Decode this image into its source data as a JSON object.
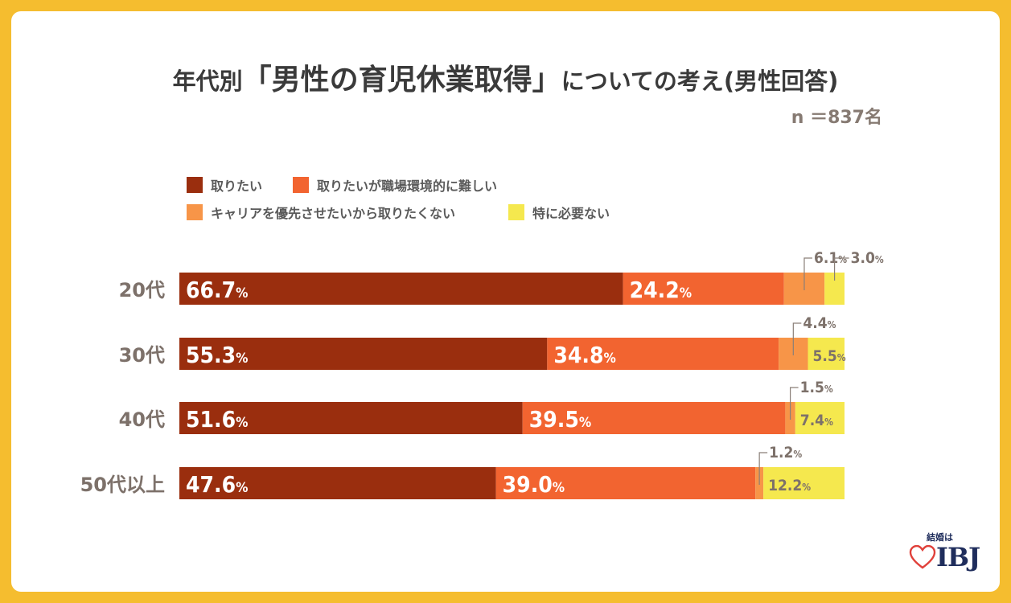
{
  "title": {
    "prefix": "年代別",
    "main": "「男性の育児休業取得」",
    "suffix": "についての考え(男性回答)"
  },
  "sample_size": "n ＝837名",
  "logo": {
    "top_text": "結婚は",
    "brand": "IBJ"
  },
  "chart_data": {
    "type": "bar",
    "orientation": "horizontal",
    "stacked": true,
    "percent_stacked": true,
    "categories": [
      "20代",
      "30代",
      "40代",
      "50代以上"
    ],
    "series": [
      {
        "name": "取りたい",
        "color": "#9a2e0e",
        "values": [
          66.7,
          55.3,
          51.6,
          47.6
        ]
      },
      {
        "name": "取りたいが職場環境的に難しい",
        "color": "#f26430",
        "values": [
          24.2,
          34.8,
          39.5,
          39.0
        ]
      },
      {
        "name": "キャリアを優先させたいから取りたくない",
        "color": "#f79548",
        "values": [
          6.1,
          4.4,
          1.5,
          1.2
        ]
      },
      {
        "name": "特に必要ない",
        "color": "#f5e84e",
        "values": [
          3.0,
          5.5,
          7.4,
          12.2
        ]
      }
    ],
    "value_labels": [
      [
        "66.7",
        "24.2",
        "6.1",
        "3.0"
      ],
      [
        "55.3",
        "34.8",
        "4.4",
        "5.5"
      ],
      [
        "51.6",
        "39.5",
        "1.5",
        "7.4"
      ],
      [
        "47.6",
        "39.0",
        "1.2",
        "12.2"
      ]
    ],
    "label_unit": "%",
    "legend_position": "top-left"
  }
}
